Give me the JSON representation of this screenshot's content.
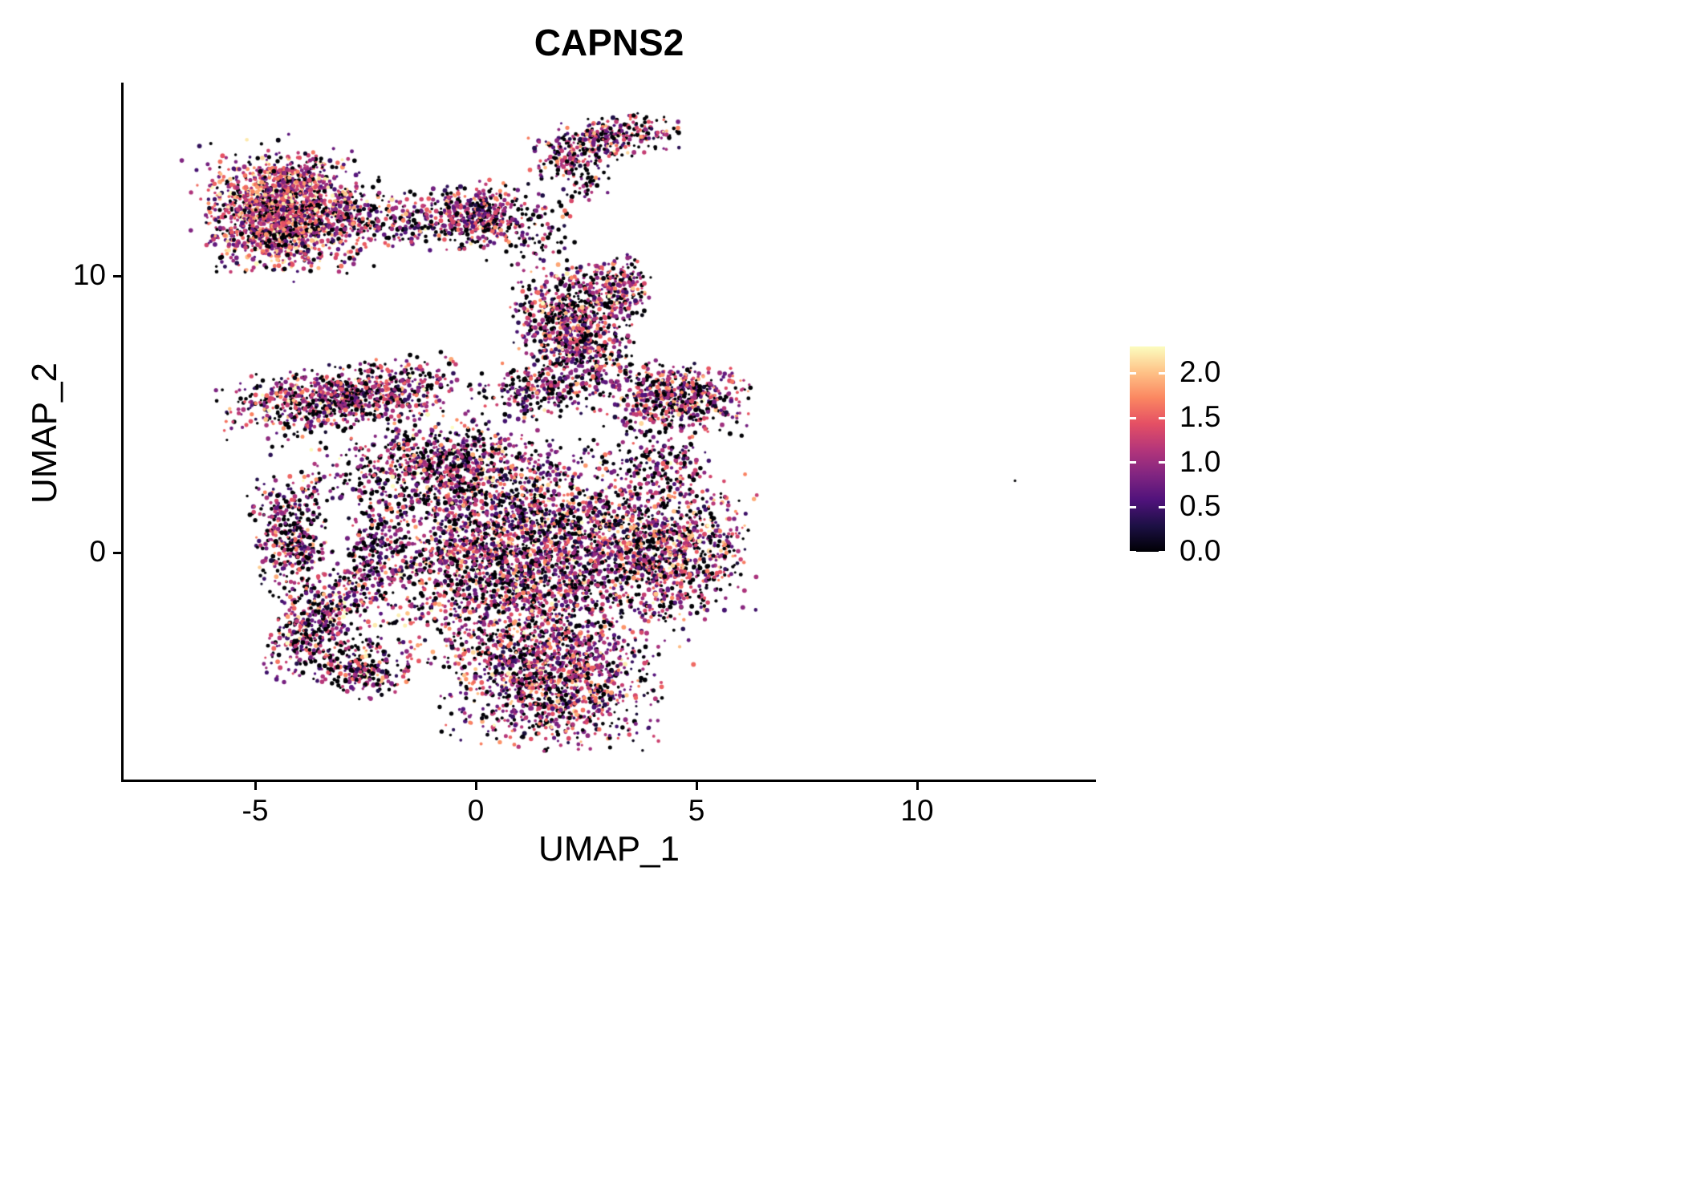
{
  "colors": {
    "background": "#ffffff",
    "axis": "#000000",
    "text": "#000000"
  },
  "chart_data": {
    "type": "scatter",
    "title": "CAPNS2",
    "xlabel": "UMAP_1",
    "ylabel": "UMAP_2",
    "xlim": [
      -8.0,
      14.0
    ],
    "ylim": [
      -8.2,
      17.0
    ],
    "x_ticks": [
      -5,
      0,
      5,
      10
    ],
    "y_ticks": [
      0,
      10
    ],
    "grid": false,
    "legend_position": "right",
    "colorbar": {
      "ticks": [
        2.0,
        1.5,
        1.0,
        0.5,
        0.0
      ],
      "tick_labels": [
        "2.0",
        "1.5",
        "1.0",
        "0.5",
        "0.0"
      ],
      "min": 0.0,
      "max": 2.3,
      "colormap": "magma",
      "stops": [
        "#000004",
        "#1c1044",
        "#4f127b",
        "#812581",
        "#b5367a",
        "#e55064",
        "#fb8761",
        "#fec287",
        "#fcfdbf"
      ]
    },
    "points_seed": 42,
    "point_radius_px": [
      1.5,
      3.0
    ],
    "clusters": [
      {
        "name": "top-left-blob",
        "cx": -4.35,
        "cy": 12.35,
        "sx": 0.8,
        "sy": 1.0,
        "rot": 0,
        "n": 1700,
        "p0": 0.18,
        "mean": 1.3,
        "sd": 0.55
      },
      {
        "name": "top-left-halo",
        "cx": -4.35,
        "cy": 12.3,
        "sx": 1.1,
        "sy": 1.3,
        "rot": 0,
        "n": 200,
        "p0": 0.3,
        "mean": 1.0,
        "sd": 0.5
      },
      {
        "name": "top-left-bridge",
        "cx": -2.0,
        "cy": 12.0,
        "sx": 0.9,
        "sy": 0.55,
        "rot": -5,
        "n": 280,
        "p0": 0.3,
        "mean": 1.05,
        "sd": 0.5
      },
      {
        "name": "top-mid-cluster",
        "cx": 0.0,
        "cy": 12.2,
        "sx": 0.55,
        "sy": 0.55,
        "rot": 10,
        "n": 430,
        "p0": 0.28,
        "mean": 1.05,
        "sd": 0.5
      },
      {
        "name": "top-mid-scatter",
        "cx": 1.4,
        "cy": 11.8,
        "sx": 0.55,
        "sy": 1.0,
        "rot": 0,
        "n": 110,
        "p0": 0.45,
        "mean": 0.9,
        "sd": 0.5
      },
      {
        "name": "hook-main",
        "cx": 3.0,
        "cy": 15.0,
        "sx": 0.8,
        "sy": 0.38,
        "rot": 14,
        "n": 300,
        "p0": 0.3,
        "mean": 1.1,
        "sd": 0.55
      },
      {
        "name": "hook-left",
        "cx": 2.0,
        "cy": 14.3,
        "sx": 0.3,
        "sy": 0.45,
        "rot": -25,
        "n": 90,
        "p0": 0.35,
        "mean": 1.0,
        "sd": 0.5
      },
      {
        "name": "hook-drop",
        "cx": 2.5,
        "cy": 13.6,
        "sx": 0.25,
        "sy": 0.4,
        "rot": 0,
        "n": 55,
        "p0": 0.4,
        "mean": 0.9,
        "sd": 0.5
      },
      {
        "name": "upper-central",
        "cx": 2.2,
        "cy": 8.25,
        "sx": 0.65,
        "sy": 1.05,
        "rot": 0,
        "n": 780,
        "p0": 0.28,
        "mean": 1.05,
        "sd": 0.55
      },
      {
        "name": "upper-central-right",
        "cx": 3.2,
        "cy": 9.6,
        "sx": 0.35,
        "sy": 0.55,
        "rot": 0,
        "n": 190,
        "p0": 0.25,
        "mean": 1.15,
        "sd": 0.5
      },
      {
        "name": "upper-central-trail",
        "cx": 2.6,
        "cy": 6.9,
        "sx": 0.45,
        "sy": 0.6,
        "rot": 0,
        "n": 110,
        "p0": 0.4,
        "mean": 0.95,
        "sd": 0.5
      },
      {
        "name": "left-band",
        "cx": -3.0,
        "cy": 5.65,
        "sx": 1.35,
        "sy": 0.55,
        "rot": 11,
        "n": 880,
        "p0": 0.28,
        "mean": 1.05,
        "sd": 0.5
      },
      {
        "name": "mid-band",
        "cx": 1.55,
        "cy": 5.9,
        "sx": 0.7,
        "sy": 0.5,
        "rot": 8,
        "n": 260,
        "p0": 0.35,
        "mean": 1.0,
        "sd": 0.5
      },
      {
        "name": "right-band",
        "cx": 4.55,
        "cy": 5.6,
        "sx": 0.78,
        "sy": 0.6,
        "rot": -8,
        "n": 620,
        "p0": 0.25,
        "mean": 1.1,
        "sd": 0.55
      },
      {
        "name": "central-main",
        "cx": 1.0,
        "cy": 0.0,
        "sx": 1.8,
        "sy": 1.9,
        "rot": 0,
        "n": 3300,
        "p0": 0.28,
        "mean": 1.05,
        "sd": 0.55
      },
      {
        "name": "central-top",
        "cx": -0.6,
        "cy": 3.3,
        "sx": 1.0,
        "sy": 0.75,
        "rot": -12,
        "n": 520,
        "p0": 0.3,
        "mean": 1.0,
        "sd": 0.55
      },
      {
        "name": "central-right",
        "cx": 4.5,
        "cy": 0.2,
        "sx": 0.85,
        "sy": 1.2,
        "rot": 0,
        "n": 850,
        "p0": 0.25,
        "mean": 1.15,
        "sd": 0.55
      },
      {
        "name": "central-upper-right",
        "cx": 4.2,
        "cy": 3.2,
        "sx": 0.6,
        "sy": 0.6,
        "rot": 0,
        "n": 160,
        "p0": 0.4,
        "mean": 0.95,
        "sd": 0.5
      },
      {
        "name": "crescent-upper",
        "cx": -4.15,
        "cy": 0.5,
        "sx": 0.4,
        "sy": 1.2,
        "rot": 6,
        "n": 430,
        "p0": 0.3,
        "mean": 1.0,
        "sd": 0.55
      },
      {
        "name": "crescent-mid",
        "cx": -3.6,
        "cy": -2.6,
        "sx": 0.42,
        "sy": 1.0,
        "rot": -25,
        "n": 380,
        "p0": 0.3,
        "mean": 1.0,
        "sd": 0.55
      },
      {
        "name": "crescent-lower",
        "cx": -2.6,
        "cy": -4.1,
        "sx": 0.6,
        "sy": 0.5,
        "rot": -30,
        "n": 280,
        "p0": 0.3,
        "mean": 1.0,
        "sd": 0.55
      },
      {
        "name": "crescent-inner",
        "cx": -2.4,
        "cy": -0.4,
        "sx": 0.3,
        "sy": 1.1,
        "rot": -10,
        "n": 190,
        "p0": 0.4,
        "mean": 0.9,
        "sd": 0.5
      },
      {
        "name": "bottom-blob",
        "cx": 1.7,
        "cy": -4.6,
        "sx": 1.15,
        "sy": 1.2,
        "rot": 0,
        "n": 1300,
        "p0": 0.25,
        "mean": 1.1,
        "sd": 0.55
      },
      {
        "name": "sparse-mid-left",
        "cx": -2.2,
        "cy": 2.9,
        "sx": 1.2,
        "sy": 0.8,
        "rot": 0,
        "n": 220,
        "p0": 0.45,
        "mean": 0.9,
        "sd": 0.5
      },
      {
        "name": "outlier",
        "cx": 12.2,
        "cy": 2.6,
        "sx": 0.02,
        "sy": 0.02,
        "rot": 0,
        "n": 1,
        "p0": 1.0,
        "mean": 0.0,
        "sd": 0.0
      }
    ]
  }
}
